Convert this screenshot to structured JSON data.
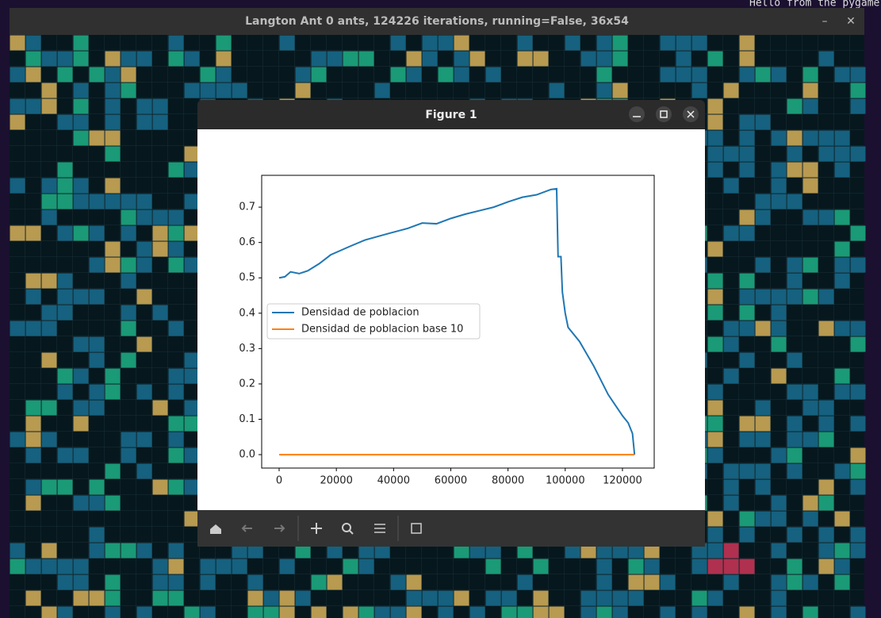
{
  "window": {
    "title": "Langton Ant 0 ants, 124226 iterations, running=False, 36x54"
  },
  "terminal": {
    "line": "Hello from the pygame"
  },
  "figure": {
    "title": "Figure 1"
  },
  "chart_data": {
    "type": "line",
    "series": [
      {
        "name": "Densidad de poblacion",
        "color": "#1f77b4",
        "x": [
          0,
          2000,
          4000,
          7000,
          10000,
          14000,
          18000,
          25000,
          30000,
          38000,
          45000,
          50000,
          55000,
          60000,
          65000,
          70000,
          75000,
          80000,
          85000,
          90000,
          95000,
          97000,
          97500,
          98500,
          99000,
          100000,
          101000,
          105000,
          110000,
          115000,
          120000,
          122000,
          123500,
          124226
        ],
        "values": [
          0.5,
          0.503,
          0.517,
          0.512,
          0.52,
          0.54,
          0.565,
          0.59,
          0.607,
          0.625,
          0.64,
          0.655,
          0.653,
          0.668,
          0.68,
          0.69,
          0.7,
          0.715,
          0.728,
          0.735,
          0.75,
          0.752,
          0.56,
          0.56,
          0.46,
          0.4,
          0.36,
          0.32,
          0.25,
          0.17,
          0.11,
          0.09,
          0.06,
          0.0
        ]
      },
      {
        "name": "Densidad de poblacion base 10",
        "color": "#ff7f0e",
        "x": [
          0,
          124226
        ],
        "values": [
          0,
          0
        ]
      }
    ],
    "xlim": [
      -6100,
      131100
    ],
    "ylim": [
      -0.038,
      0.79
    ],
    "xticks": [
      0,
      20000,
      40000,
      60000,
      80000,
      100000,
      120000
    ],
    "yticks": [
      {
        "value": 0,
        "label": "0.0"
      },
      0.1,
      0.2,
      0.3,
      0.4,
      0.5,
      0.6,
      0.7
    ],
    "legend": "center left"
  }
}
